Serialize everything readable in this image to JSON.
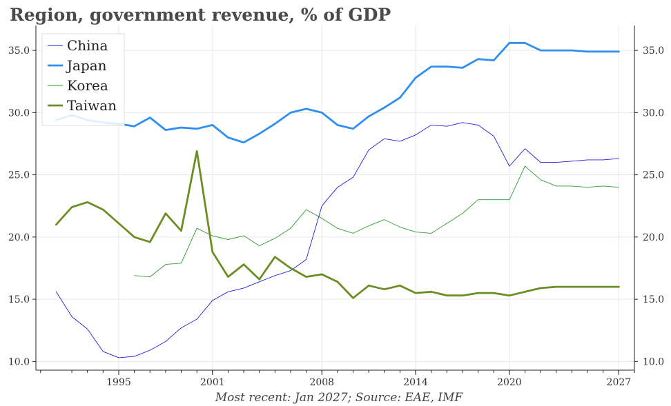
{
  "chart_data": {
    "type": "line",
    "title": "Region, government revenue, % of GDP",
    "source_note": "Most recent: Jan 2027; Source: EAE, IMF",
    "x_tick_labels": [
      "1995",
      "2001",
      "2008",
      "2014",
      "2020",
      "2027"
    ],
    "x_ticks": [
      1995,
      2001,
      2008,
      2014,
      2020,
      2027
    ],
    "x_minor_ticks": [
      1990,
      1992,
      1993,
      1994,
      1995,
      1996,
      1997,
      1998,
      1999,
      2000,
      2001,
      2002,
      2003,
      2004,
      2005,
      2006,
      2007,
      2008,
      2009,
      2010,
      2011,
      2012,
      2013,
      2014,
      2015,
      2016,
      2017,
      2018,
      2019,
      2020,
      2021,
      2022,
      2023,
      2024,
      2025,
      2026,
      2027,
      2028
    ],
    "xlim": [
      1989.7,
      2028.0
    ],
    "ylim": [
      9.3,
      37.0
    ],
    "y_ticks": [
      10,
      15,
      20,
      25,
      30,
      35
    ],
    "y_tick_labels": [
      "10.0",
      "15.0",
      "20.0",
      "25.0",
      "30.0",
      "35.0"
    ],
    "grid": true,
    "legend_position": "top-left",
    "series": [
      {
        "name": "China",
        "color": "#1f1fd6",
        "width": 0.9,
        "x": [
          1991,
          1992,
          1993,
          1994,
          1995,
          1996,
          1997,
          1998,
          1999,
          2000,
          2001,
          2002,
          2003,
          2004,
          2005,
          2006,
          2007,
          2008,
          2009,
          2010,
          2011,
          2012,
          2013,
          2014,
          2015,
          2016,
          2017,
          2018,
          2019,
          2020,
          2021,
          2022,
          2023,
          2024,
          2025,
          2026,
          2027
        ],
        "values": [
          15.6,
          13.6,
          12.6,
          10.8,
          10.3,
          10.4,
          10.9,
          11.6,
          12.7,
          13.4,
          14.9,
          15.6,
          15.9,
          16.4,
          16.9,
          17.3,
          18.2,
          22.5,
          24.0,
          24.8,
          27.0,
          27.9,
          27.7,
          28.2,
          29.0,
          28.9,
          29.2,
          29.0,
          28.1,
          25.7,
          27.1,
          26.0,
          26.0,
          26.1,
          26.2,
          26.2,
          26.3
        ]
      },
      {
        "name": "Japan",
        "color": "#2e8ff0",
        "width": 2.8,
        "x": [
          1991,
          1992,
          1993,
          1994,
          1995,
          1996,
          1997,
          1998,
          1999,
          2000,
          2001,
          2002,
          2003,
          2004,
          2005,
          2006,
          2007,
          2008,
          2009,
          2010,
          2011,
          2012,
          2013,
          2014,
          2015,
          2016,
          2017,
          2018,
          2019,
          2020,
          2021,
          2022,
          2023,
          2024,
          2025,
          2026,
          2027
        ],
        "values": [
          29.4,
          29.8,
          29.4,
          29.2,
          29.1,
          28.9,
          29.6,
          28.6,
          28.8,
          28.7,
          29.0,
          28.0,
          27.6,
          28.3,
          29.1,
          30.0,
          30.3,
          30.0,
          29.0,
          28.7,
          29.7,
          30.4,
          31.2,
          32.8,
          33.7,
          33.7,
          33.6,
          34.3,
          34.2,
          35.6,
          35.6,
          35.0,
          35.0,
          35.0,
          34.9,
          34.9,
          34.9
        ]
      },
      {
        "name": "Korea",
        "color": "#2e9a2e",
        "width": 0.9,
        "x": [
          1996,
          1997,
          1998,
          1999,
          2000,
          2001,
          2002,
          2003,
          2004,
          2005,
          2006,
          2007,
          2008,
          2009,
          2010,
          2011,
          2012,
          2013,
          2014,
          2015,
          2016,
          2017,
          2018,
          2019,
          2020,
          2021,
          2022,
          2023,
          2024,
          2025,
          2026,
          2027
        ],
        "values": [
          16.9,
          16.8,
          17.8,
          17.9,
          20.7,
          20.1,
          19.8,
          20.1,
          19.3,
          19.9,
          20.7,
          22.2,
          21.5,
          20.7,
          20.3,
          20.9,
          21.4,
          20.8,
          20.4,
          20.3,
          21.1,
          21.9,
          23.0,
          23.0,
          23.0,
          25.7,
          24.6,
          24.1,
          24.1,
          24.0,
          24.1,
          24.0
        ]
      },
      {
        "name": "Taiwan",
        "color": "#6b8e23",
        "width": 2.8,
        "x": [
          1991,
          1992,
          1993,
          1994,
          1995,
          1996,
          1997,
          1998,
          1999,
          2000,
          2001,
          2002,
          2003,
          2004,
          2005,
          2006,
          2007,
          2008,
          2009,
          2010,
          2011,
          2012,
          2013,
          2014,
          2015,
          2016,
          2017,
          2018,
          2019,
          2020,
          2021,
          2022,
          2023,
          2024,
          2025,
          2026,
          2027
        ],
        "values": [
          21.0,
          22.4,
          22.8,
          22.2,
          21.1,
          20.0,
          19.6,
          21.9,
          20.5,
          26.9,
          18.8,
          16.8,
          17.8,
          16.6,
          18.4,
          17.5,
          16.8,
          17.0,
          16.4,
          15.1,
          16.1,
          15.8,
          16.1,
          15.5,
          15.6,
          15.3,
          15.3,
          15.5,
          15.5,
          15.3,
          15.6,
          15.9,
          16.0,
          16.0,
          16.0,
          16.0,
          16.0
        ]
      }
    ]
  }
}
